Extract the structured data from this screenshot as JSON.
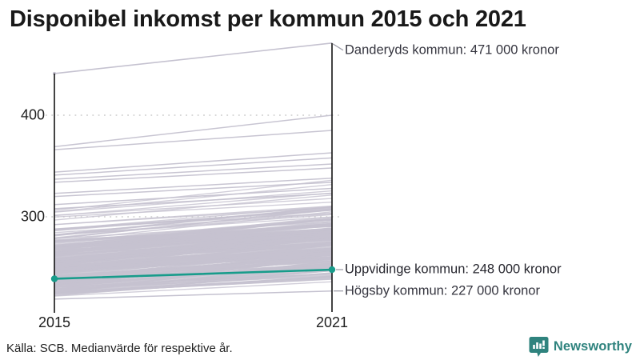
{
  "title": "Disponibel inkomst per kommun 2015 och 2021",
  "footer": {
    "source": "Källa: SCB. Medianvärde för respektive år."
  },
  "branding": {
    "name": "Newsworthy",
    "color": "#2f837e",
    "icon": "bar-chart-speech-bubble-icon"
  },
  "chart_data": {
    "type": "line",
    "subtype": "slopegraph",
    "title": "Disponibel inkomst per kommun 2015 och 2021",
    "xlabel": "",
    "ylabel": "",
    "x": [
      2015,
      2021
    ],
    "x_labels": [
      "2015",
      "2021"
    ],
    "y_ticks": [
      400,
      300
    ],
    "y_tick_labels": [
      "400",
      "300"
    ],
    "ylim": [
      215,
      475
    ],
    "grid": "dotted-horizontal",
    "annotations": [
      {
        "text": "Danderyds kommun: 471 000 kronor",
        "series": "Danderyds kommun",
        "value_2021": 471,
        "highlighted": false
      },
      {
        "text": "Uppvidinge kommun: 248 000 kronor",
        "series": "Uppvidinge kommun",
        "value_2021": 248,
        "highlighted": true
      },
      {
        "text": "Högsby kommun: 227 000 kronor",
        "series": "Högsby kommun",
        "value_2021": 227,
        "highlighted": false
      }
    ],
    "named_series": [
      {
        "name": "Danderyds kommun",
        "values": [
          441,
          471
        ],
        "role": "max",
        "color": "gray"
      },
      {
        "name": "Uppvidinge kommun",
        "values": [
          239,
          248
        ],
        "role": "highlight",
        "color": "#189c8b"
      },
      {
        "name": "Högsby kommun",
        "values": [
          219,
          227
        ],
        "role": "min-2021",
        "color": "gray"
      }
    ],
    "outlier_lines_estimated": [
      [
        369,
        400
      ],
      [
        366,
        385
      ],
      [
        344,
        363
      ],
      [
        341,
        358
      ],
      [
        337,
        352
      ],
      [
        334,
        348
      ],
      [
        323,
        338
      ],
      [
        320,
        334
      ],
      [
        312,
        328
      ],
      [
        308,
        323
      ]
    ],
    "background_band_estimated": {
      "description": "remaining Swedish municipalities, unlabeled gray slope lines",
      "count": 260,
      "v2015_dense_range": [
        222,
        272
      ],
      "v2015_upper_range": [
        265,
        308
      ],
      "growth_range": [
        13,
        30
      ],
      "seed": 42
    },
    "colors": {
      "line_gray": "#c5c2d0",
      "highlight": "#189c8b",
      "axis": "#141414",
      "grid": "#cccccc",
      "callout": "#a0a0ab",
      "annotation_text": "#35353f"
    }
  }
}
